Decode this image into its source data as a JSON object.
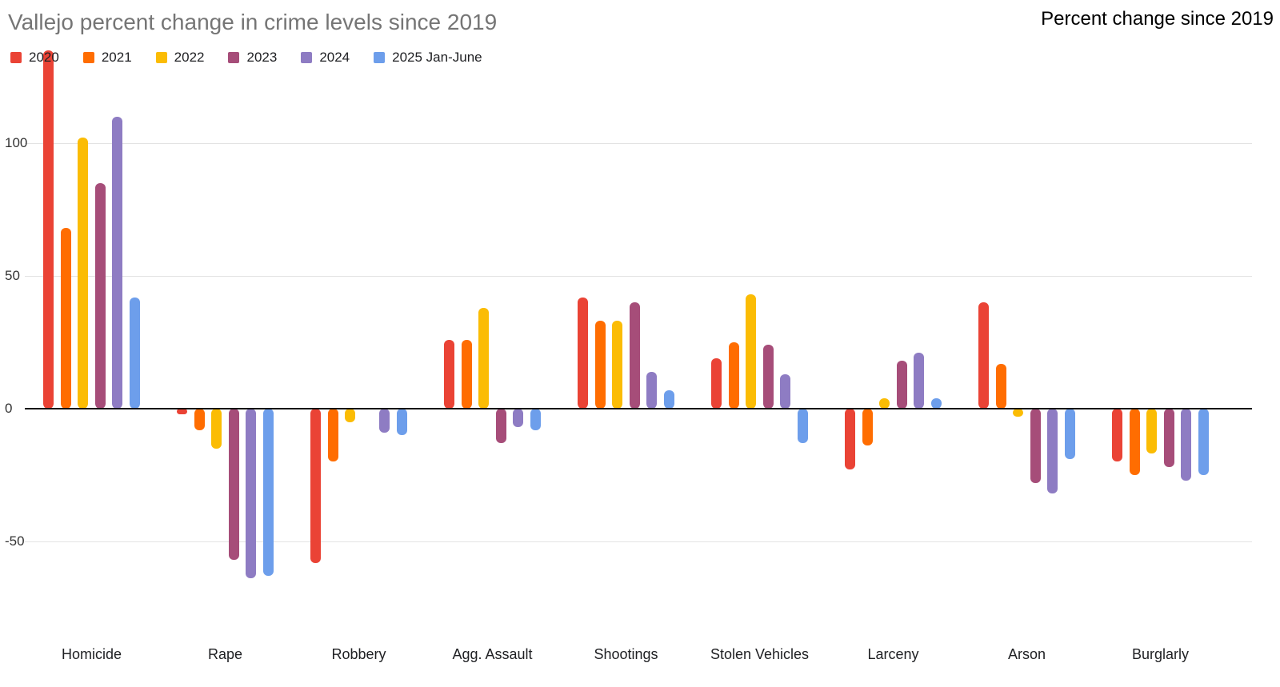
{
  "header": {
    "title": "Vallejo percent change in crime levels since 2019",
    "right_label": "Percent change since 2019"
  },
  "chart_data": {
    "type": "bar",
    "title": "Vallejo percent change in crime levels since 2019",
    "subtitle_right": "Percent change since 2019",
    "categories": [
      "Homicide",
      "Rape",
      "Robbery",
      "Agg. Assault",
      "Shootings",
      "Stolen Vehicles",
      "Larceny",
      "Arson",
      "Burglarly"
    ],
    "series": [
      {
        "name": "2020",
        "color": "#EA4335",
        "values": [
          135,
          -2,
          -58,
          26,
          42,
          19,
          -23,
          40,
          -20
        ]
      },
      {
        "name": "2021",
        "color": "#FF6D01",
        "values": [
          68,
          -8,
          -20,
          26,
          33,
          25,
          -14,
          17,
          -25
        ]
      },
      {
        "name": "2022",
        "color": "#FBBC04",
        "values": [
          102,
          -15,
          -5,
          38,
          33,
          43,
          4,
          -3,
          -17
        ]
      },
      {
        "name": "2023",
        "color": "#A64D79",
        "values": [
          85,
          -57,
          0,
          -13,
          40,
          24,
          18,
          -28,
          -22
        ]
      },
      {
        "name": "2024",
        "color": "#8E7CC3",
        "values": [
          110,
          -64,
          -9,
          -7,
          14,
          13,
          21,
          -32,
          -27
        ]
      },
      {
        "name": "2025 Jan-June",
        "color": "#6D9EEB",
        "values": [
          42,
          -63,
          -10,
          -8,
          7,
          -13,
          4,
          -19,
          -25
        ]
      }
    ],
    "y_ticks": [
      100,
      50,
      0,
      -50
    ],
    "ylim": [
      -78,
      136
    ],
    "grid": true,
    "legend_position": "top-left",
    "xlabel": "",
    "ylabel": ""
  }
}
